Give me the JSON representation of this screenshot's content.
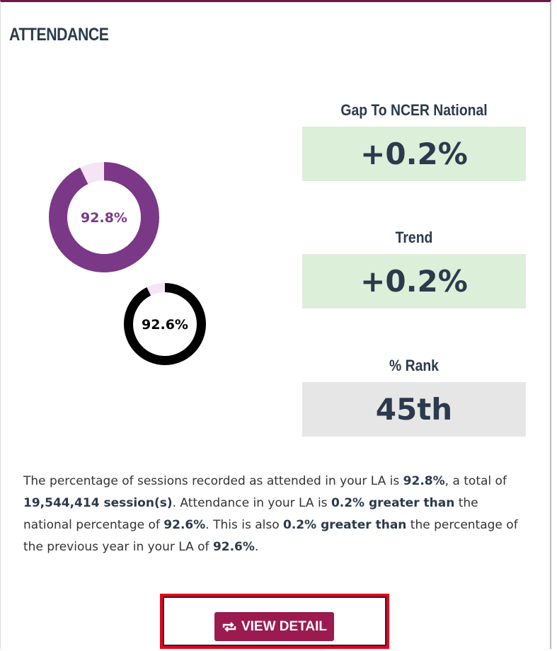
{
  "header": {
    "title": "ATTENDANCE"
  },
  "donuts": [
    {
      "value": 92.8,
      "label": "92.8%",
      "color": "#7b3887",
      "track": "#f4e4f4",
      "text_color": "#7b3887"
    },
    {
      "value": 92.6,
      "label": "92.6%",
      "color": "#000000",
      "track": "#f4e4f4",
      "text_color": "#000000"
    }
  ],
  "stats": [
    {
      "label": "Gap To NCER National",
      "value": "+0.2%",
      "color": "#dcefd9"
    },
    {
      "label": "Trend",
      "value": "+0.2%",
      "color": "#dcefd9"
    },
    {
      "label": "% Rank",
      "value": "45th",
      "color": "#e6e6e6"
    }
  ],
  "summary": [
    {
      "text": "The percentage of sessions recorded as attended in your LA is ",
      "bold": false
    },
    {
      "text": "92.8%",
      "bold": true
    },
    {
      "text": ", a total of ",
      "bold": false
    },
    {
      "text": "19,544,414 session(s)",
      "bold": true
    },
    {
      "text": ". Attendance in your LA is ",
      "bold": false
    },
    {
      "text": "0.2% greater than",
      "bold": true
    },
    {
      "text": " the national percentage of ",
      "bold": false
    },
    {
      "text": "92.6%",
      "bold": true
    },
    {
      "text": ". This is also ",
      "bold": false
    },
    {
      "text": "0.2% greater than",
      "bold": true
    },
    {
      "text": " the percentage of the previous year in your LA of ",
      "bold": false
    },
    {
      "text": "92.6%",
      "bold": true
    },
    {
      "text": ".",
      "bold": false
    }
  ],
  "button": {
    "label": "VIEW DETAIL"
  }
}
